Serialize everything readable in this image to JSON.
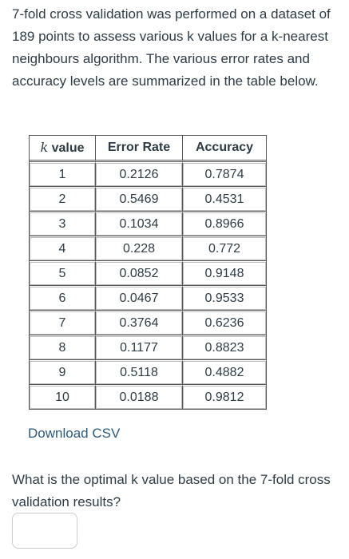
{
  "intro_text": "7-fold cross validation was performed on a dataset of 189 points to assess various k values for a k-nearest neighbours algorithm. The various error rates and accuracy levels are summarized in the table below.",
  "table": {
    "header_k_var": "k",
    "header_k_suffix": " value",
    "header_error": "Error Rate",
    "header_accuracy": "Accuracy",
    "rows": [
      {
        "k": "1",
        "error": "0.2126",
        "accuracy": "0.7874"
      },
      {
        "k": "2",
        "error": "0.5469",
        "accuracy": "0.4531"
      },
      {
        "k": "3",
        "error": "0.1034",
        "accuracy": "0.8966"
      },
      {
        "k": "4",
        "error": "0.228",
        "accuracy": "0.772"
      },
      {
        "k": "5",
        "error": "0.0852",
        "accuracy": "0.9148"
      },
      {
        "k": "6",
        "error": "0.0467",
        "accuracy": "0.9533"
      },
      {
        "k": "7",
        "error": "0.3764",
        "accuracy": "0.6236"
      },
      {
        "k": "8",
        "error": "0.1177",
        "accuracy": "0.8823"
      },
      {
        "k": "9",
        "error": "0.5118",
        "accuracy": "0.4882"
      },
      {
        "k": "10",
        "error": "0.0188",
        "accuracy": "0.9812"
      }
    ]
  },
  "download_label": "Download CSV",
  "question_text": "What is the optimal k value based on the 7-fold cross validation results?",
  "answer": {
    "value": "",
    "placeholder": ""
  },
  "colors": {
    "text": "#2d3b45",
    "link": "#2b5a7e",
    "border": "#555555"
  }
}
